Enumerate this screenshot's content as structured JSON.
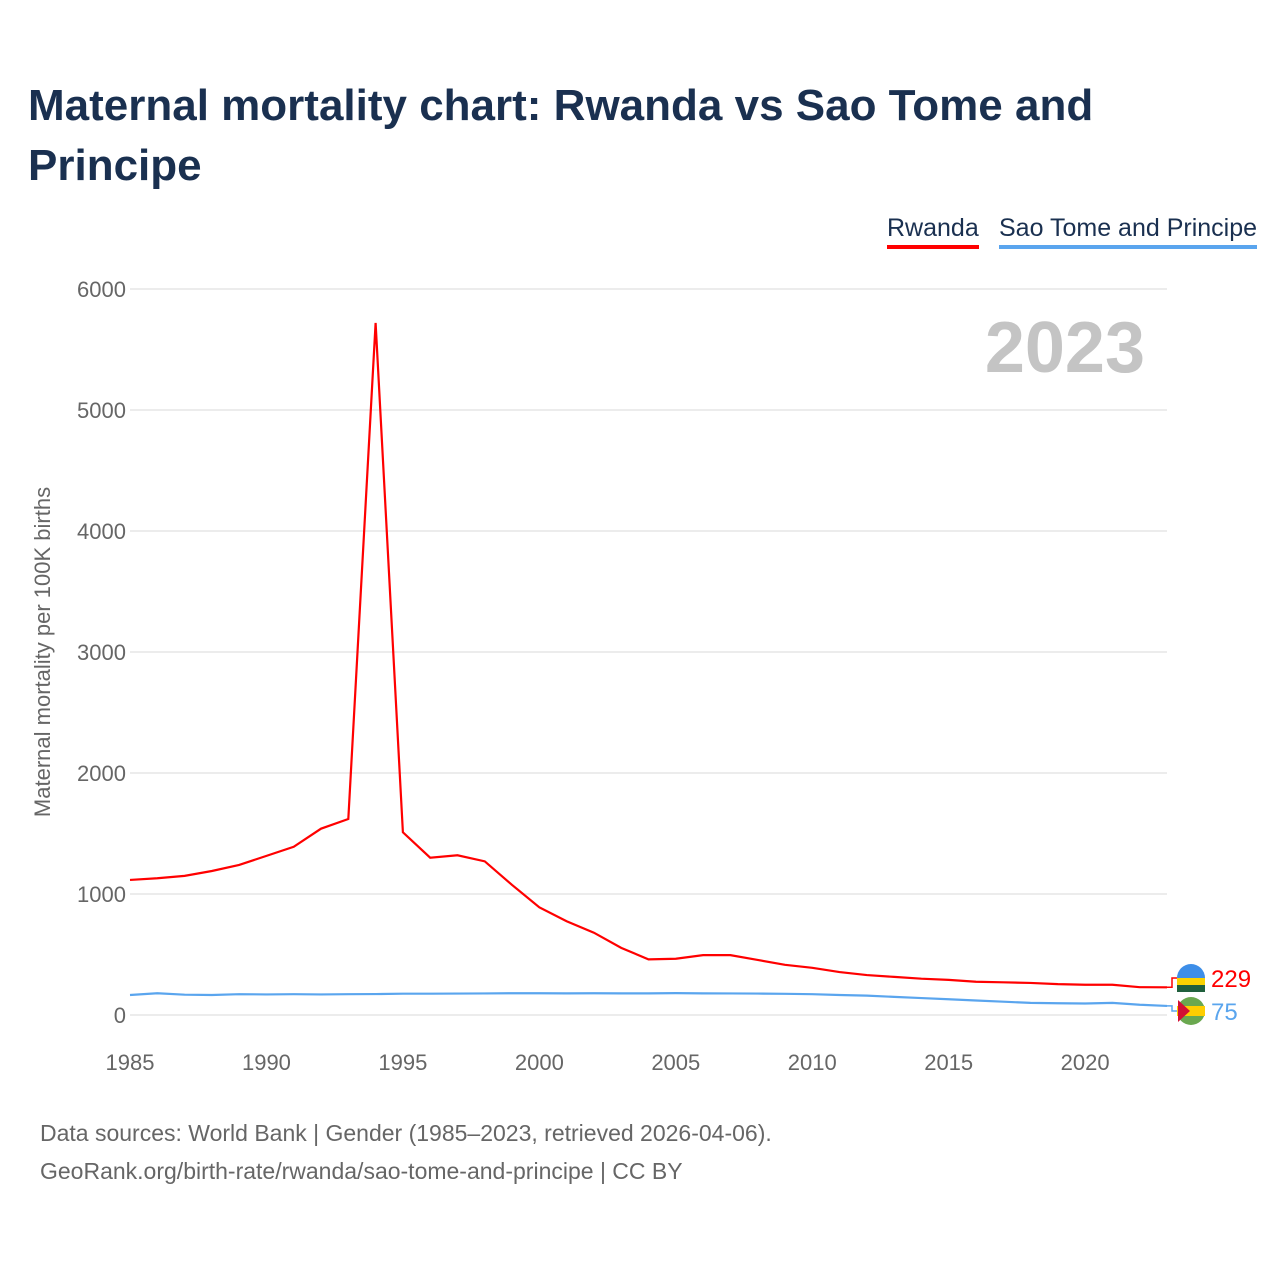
{
  "title": "Maternal mortality chart: Rwanda vs Sao Tome and Principe",
  "footer": {
    "line1": "Data sources: World Bank | Gender (1985–2023, retrieved 2026-04-06).",
    "line2": "GeoRank.org/birth-rate/rwanda/sao-tome-and-principe | CC BY"
  },
  "chart_data": {
    "type": "line",
    "title": "Maternal mortality chart: Rwanda vs Sao Tome and Principe",
    "ylabel": "Maternal mortality per 100K births",
    "xlabel": "",
    "ylim": [
      0,
      6000
    ],
    "xlim": [
      1985,
      2023
    ],
    "yticks": [
      0,
      1000,
      2000,
      3000,
      4000,
      5000,
      6000
    ],
    "xticks": [
      1985,
      1990,
      1995,
      2000,
      2005,
      2010,
      2015,
      2020
    ],
    "year_label": "2023",
    "legend_placement": "top-right",
    "grid": true,
    "x": [
      1985,
      1986,
      1987,
      1988,
      1989,
      1990,
      1991,
      1992,
      1993,
      1994,
      1995,
      1996,
      1997,
      1998,
      1999,
      2000,
      2001,
      2002,
      2003,
      2004,
      2005,
      2006,
      2007,
      2008,
      2009,
      2010,
      2011,
      2012,
      2013,
      2014,
      2015,
      2016,
      2017,
      2018,
      2019,
      2020,
      2021,
      2022,
      2023
    ],
    "series": [
      {
        "name": "Rwanda",
        "color": "#ff0000",
        "end_label": "229",
        "values": [
          1116,
          1130,
          1150,
          1190,
          1240,
          1315,
          1390,
          1540,
          1620,
          5720,
          1510,
          1300,
          1320,
          1270,
          1075,
          890,
          775,
          680,
          555,
          460,
          465,
          495,
          495,
          455,
          415,
          390,
          355,
          330,
          315,
          300,
          290,
          275,
          270,
          265,
          255,
          250,
          250,
          230,
          229
        ]
      },
      {
        "name": "Sao Tome and Principe",
        "color": "#5aa5ee",
        "end_label": "75",
        "values": [
          165,
          180,
          168,
          165,
          172,
          170,
          172,
          170,
          172,
          173,
          176,
          176,
          177,
          178,
          180,
          180,
          179,
          180,
          179,
          179,
          181,
          179,
          178,
          177,
          175,
          172,
          165,
          160,
          150,
          140,
          130,
          120,
          110,
          100,
          97,
          95,
          100,
          85,
          75
        ]
      }
    ]
  }
}
